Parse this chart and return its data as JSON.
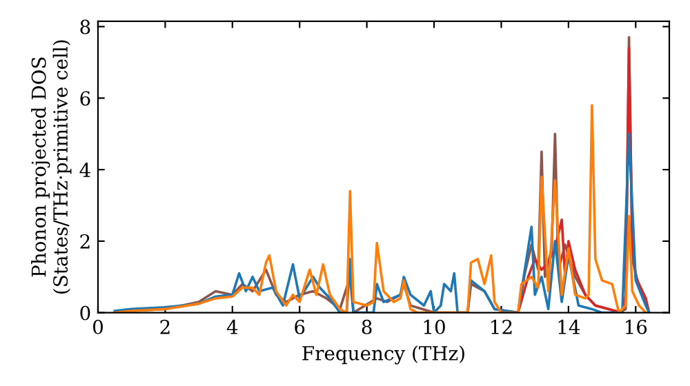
{
  "chart_data": {
    "type": "line",
    "xlabel": "Frequency (THz)",
    "ylabel": "Phonon projected DOS\n(States/THz·primitive cell)",
    "xlim": [
      0,
      17
    ],
    "ylim": [
      0,
      8.15
    ],
    "xticks": [
      0,
      2,
      4,
      6,
      8,
      10,
      12,
      14,
      16
    ],
    "yticks": [
      0,
      2,
      4,
      6,
      8
    ],
    "grid": false,
    "legend": false,
    "marker": "none",
    "line_style": "solid",
    "series": [
      {
        "color": "#8c564b",
        "x": [
          0.5,
          1,
          2,
          3,
          3.5,
          4,
          4.3,
          4.6,
          5.0,
          5.3,
          5.6,
          6.0,
          6.4,
          6.8,
          7.2,
          7.5,
          7.6,
          8.3,
          8.6,
          9.0,
          9.1,
          9.3,
          10.0,
          11.0,
          11.1,
          11.5,
          11.8,
          12.5,
          12.7,
          12.9,
          13.1,
          13.2,
          13.3,
          13.5,
          13.6,
          13.7,
          13.9,
          14.2,
          14.5,
          14.7,
          14.8,
          15.2,
          15.5,
          15.7,
          15.8,
          15.9,
          16.1,
          16.4
        ],
        "values": [
          0,
          0.05,
          0.1,
          0.3,
          0.6,
          0.5,
          0.8,
          0.6,
          1.2,
          0.5,
          0.3,
          0.5,
          0.6,
          0.4,
          0.1,
          1.0,
          0,
          0.4,
          0.3,
          0.5,
          0.8,
          0.2,
          0,
          0,
          0.8,
          0.6,
          0.1,
          0,
          1.1,
          1.9,
          1.2,
          4.5,
          1.0,
          1.8,
          5.0,
          1.2,
          1.9,
          1.0,
          0.5,
          0.3,
          0.2,
          0.1,
          0,
          0.1,
          7.7,
          1.5,
          0.7,
          0
        ]
      },
      {
        "color": "#d62728",
        "x": [
          12.5,
          12.8,
          13.0,
          13.2,
          13.4,
          13.6,
          13.8,
          13.9,
          14.0,
          14.2,
          14.5,
          14.8,
          15.2,
          15.6,
          15.7,
          15.8,
          15.9,
          16.0,
          16.3,
          16.4
        ],
        "values": [
          0,
          1.0,
          1.5,
          1.2,
          1.4,
          1.8,
          2.6,
          1.0,
          2.0,
          1.2,
          0.5,
          0.2,
          0.1,
          0,
          0.5,
          7.4,
          2.0,
          1.0,
          0.4,
          0
        ]
      },
      {
        "color": "#1f77b4",
        "x": [
          0.5,
          1,
          2,
          3,
          3.5,
          4,
          4.2,
          4.4,
          4.6,
          4.8,
          5.2,
          5.5,
          5.8,
          6.0,
          6.4,
          6.6,
          6.9,
          7.2,
          7.4,
          7.5,
          7.6,
          8.2,
          8.3,
          8.5,
          9.0,
          9.1,
          9.3,
          9.7,
          9.9,
          10.0,
          10.2,
          10.3,
          10.5,
          10.6,
          10.7,
          11.0,
          11.1,
          11.5,
          11.8,
          12.5,
          12.6,
          12.9,
          13.0,
          13.2,
          13.4,
          13.6,
          13.8,
          14.0,
          14.3,
          14.7,
          15.0,
          15.6,
          15.8,
          16.0,
          16.3,
          16.4
        ],
        "values": [
          0.05,
          0.1,
          0.15,
          0.25,
          0.45,
          0.5,
          1.1,
          0.6,
          1.0,
          0.6,
          0.7,
          0.2,
          1.35,
          0.4,
          1.0,
          0.7,
          0.4,
          0,
          0,
          1.5,
          0,
          0,
          0.8,
          0.3,
          0.5,
          1.0,
          0.5,
          0.2,
          0.6,
          0,
          0.2,
          0.8,
          0.6,
          1.1,
          0,
          0,
          0.9,
          0.6,
          0.1,
          0,
          0.6,
          2.4,
          0.5,
          1.0,
          0.1,
          2.0,
          0.3,
          1.6,
          0.2,
          0.1,
          0,
          0,
          5.0,
          0.9,
          0.2,
          0
        ]
      },
      {
        "color": "#ff7f0e",
        "x": [
          0.5,
          1,
          2,
          3,
          3.5,
          4,
          4.3,
          4.6,
          4.8,
          5.0,
          5.1,
          5.3,
          5.6,
          5.8,
          6.0,
          6.3,
          6.5,
          6.7,
          6.9,
          7.2,
          7.4,
          7.5,
          7.6,
          8.0,
          8.2,
          8.3,
          8.5,
          8.8,
          9.0,
          9.1,
          9.3,
          9.5,
          11.0,
          11.1,
          11.3,
          11.5,
          11.7,
          11.8,
          12.0,
          12.5,
          12.6,
          12.9,
          13.1,
          13.2,
          13.4,
          13.6,
          13.8,
          14.0,
          14.2,
          14.5,
          14.6,
          14.7,
          14.8,
          15.0,
          15.3,
          15.5,
          15.7,
          15.8,
          15.9,
          16.1,
          16.3
        ],
        "values": [
          0,
          0.05,
          0.1,
          0.25,
          0.4,
          0.45,
          0.7,
          0.7,
          0.5,
          1.4,
          1.6,
          0.6,
          0.2,
          0.5,
          0.3,
          1.2,
          0.5,
          1.35,
          0.5,
          0.1,
          0,
          3.4,
          0.3,
          0.2,
          0.3,
          1.95,
          0.6,
          0.3,
          0.4,
          0.9,
          0.1,
          0,
          0,
          1.4,
          1.5,
          0.8,
          1.6,
          0.3,
          0,
          0,
          0.8,
          1.0,
          0.7,
          3.8,
          0.6,
          3.7,
          0.5,
          1.8,
          0.5,
          0.4,
          0.5,
          5.8,
          1.5,
          0.9,
          0.8,
          0,
          0.2,
          2.7,
          0.6,
          0.2,
          0
        ]
      }
    ]
  }
}
